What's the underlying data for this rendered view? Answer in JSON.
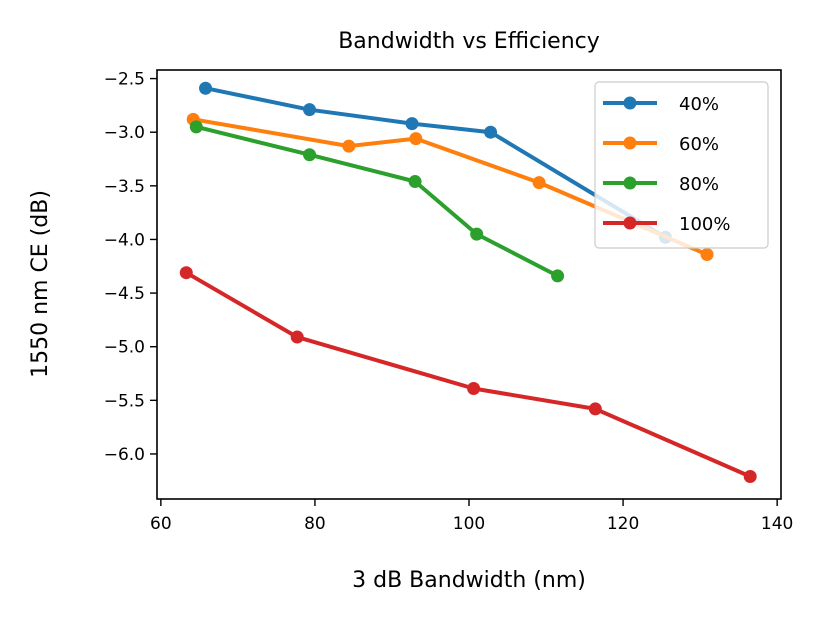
{
  "chart_data": {
    "type": "line",
    "title": "Bandwidth vs Efficiency",
    "xlabel": "3 dB Bandwidth (nm)",
    "ylabel": "1550 nm CE (dB)",
    "xlim": [
      59.5,
      140.5
    ],
    "ylim": [
      -6.42,
      -2.42
    ],
    "xticks": [
      60,
      80,
      100,
      120,
      140
    ],
    "yticks": [
      -2.5,
      -3.0,
      -3.5,
      -4.0,
      -4.5,
      -5.0,
      -5.5,
      -6.0
    ],
    "xtick_labels": [
      "60",
      "80",
      "100",
      "120",
      "140"
    ],
    "ytick_labels": [
      "−2.5",
      "−3.0",
      "−3.5",
      "−4.0",
      "−4.5",
      "−5.0",
      "−5.5",
      "−6.0"
    ],
    "grid": false,
    "legend_position": "upper-right",
    "series": [
      {
        "name": "40%",
        "color": "#1f77b4",
        "x": [
          65.8,
          79.3,
          92.6,
          102.8,
          125.5
        ],
        "y": [
          -2.59,
          -2.79,
          -2.92,
          -3.0,
          -3.98
        ]
      },
      {
        "name": "60%",
        "color": "#ff7f0e",
        "x": [
          64.2,
          84.4,
          93.1,
          109.1,
          130.9
        ],
        "y": [
          -2.88,
          -3.13,
          -3.06,
          -3.47,
          -4.14
        ]
      },
      {
        "name": "80%",
        "color": "#2ca02c",
        "x": [
          64.6,
          79.3,
          93.0,
          101.0,
          111.5
        ],
        "y": [
          -2.95,
          -3.21,
          -3.46,
          -3.95,
          -4.34
        ]
      },
      {
        "name": "100%",
        "color": "#d62728",
        "x": [
          63.3,
          77.7,
          100.6,
          116.4,
          136.5
        ],
        "y": [
          -4.31,
          -4.91,
          -5.39,
          -5.58,
          -6.21
        ]
      }
    ]
  }
}
